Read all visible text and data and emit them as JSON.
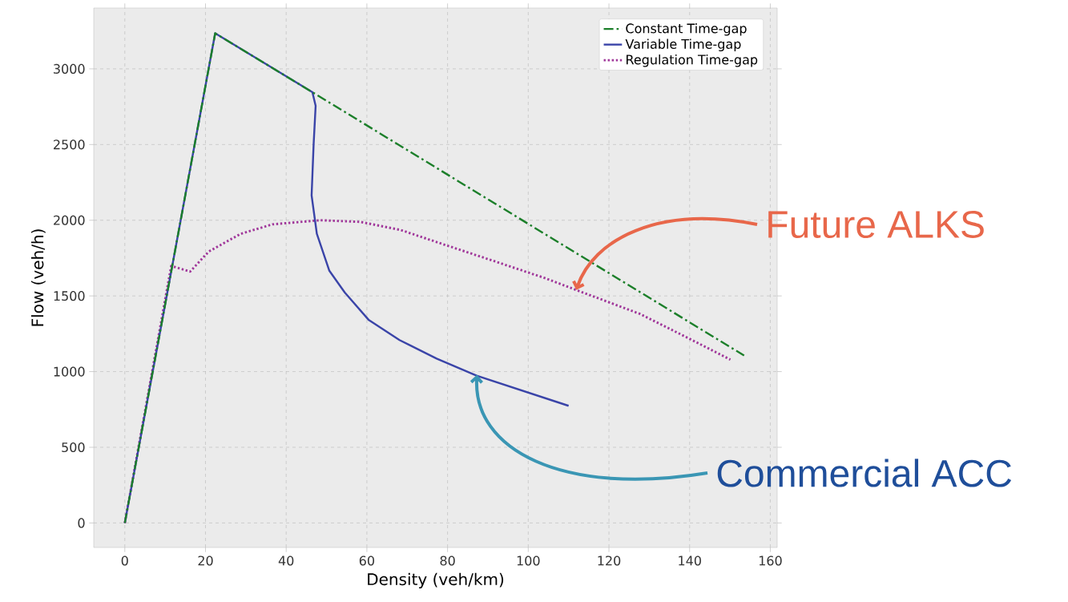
{
  "chart_data": {
    "type": "line",
    "xlabel": "Density (veh/km)",
    "ylabel": "Flow (veh/h)",
    "xlim": [
      -7.7,
      161.7
    ],
    "ylim": [
      -162,
      3402
    ],
    "xticks": [
      0,
      20,
      40,
      60,
      80,
      100,
      120,
      140,
      160
    ],
    "yticks": [
      0,
      500,
      1000,
      1500,
      2000,
      2500,
      3000
    ],
    "grid": true,
    "legend": "top right",
    "series": [
      {
        "name": "Constant Time-gap",
        "color": "#1c7f2a",
        "line_style": "dashdot",
        "x": [
          0,
          22.4,
          46.5,
          153.5
        ],
        "values": [
          0,
          3235,
          2846,
          1106
        ]
      },
      {
        "name": "Variable Time-gap",
        "color": "#3a44a8",
        "line_style": "solid",
        "x": [
          0,
          22.4,
          46.5,
          47.3,
          46.8,
          46.3,
          47.6,
          50.7,
          54.5,
          60.5,
          68.1,
          77.3,
          87.2,
          110
        ],
        "values": [
          0,
          3235,
          2846,
          2756,
          2500,
          2164,
          1910,
          1666,
          1523,
          1340,
          1208,
          1086,
          973,
          774
        ]
      },
      {
        "name": "Regulation Time-gap",
        "color": "#a0379a",
        "line_style": "dotted",
        "x": [
          0,
          11.5,
          16.2,
          20.8,
          28.7,
          36.6,
          48.5,
          58.4,
          68.3,
          80.2,
          92.1,
          104,
          111.9,
          127.7,
          139.6,
          150.1
        ],
        "values": [
          0,
          1698,
          1661,
          1793,
          1910,
          1973,
          2000,
          1989,
          1936,
          1830,
          1725,
          1619,
          1539,
          1381,
          1222,
          1079
        ]
      }
    ],
    "annotations": [
      {
        "text": "Future ALKS",
        "x": 111.9,
        "y": 1539
      },
      {
        "text": "Commercial ACC",
        "x": 87.3,
        "y": 979
      }
    ]
  }
}
